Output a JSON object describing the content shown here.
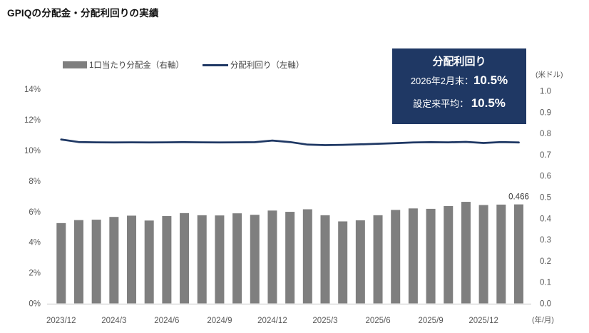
{
  "page_title": "GPIQの分配金・分配利回りの実績",
  "legend": {
    "bar_label": "1口当たり分配金（右軸）",
    "line_label": "分配利回り（左軸）"
  },
  "info_box": {
    "title": "分配利回り",
    "rows": [
      {
        "label": "2026年2月末：",
        "value": "10.5%"
      },
      {
        "label": "設定来平均： ",
        "value": "10.5%"
      }
    ]
  },
  "colors": {
    "navy": "#1f3864",
    "bar_gray": "#7f7f7f",
    "axis_text": "#595959",
    "axis_line": "#d9d9d9"
  },
  "chart_data": {
    "type": "bar",
    "title": "GPIQの分配金・分配利回りの実績",
    "x": [
      "2023/12",
      "2024/1",
      "2024/2",
      "2024/3",
      "2024/4",
      "2024/5",
      "2024/6",
      "2024/7",
      "2024/8",
      "2024/9",
      "2024/10",
      "2024/11",
      "2024/12",
      "2025/1",
      "2025/2",
      "2025/3",
      "2025/4",
      "2025/5",
      "2025/6",
      "2025/7",
      "2025/8",
      "2025/9",
      "2025/10",
      "2025/11",
      "2025/12",
      "2026/1",
      "2026/2"
    ],
    "x_tick_labels": [
      "2023/12",
      "2024/3",
      "2024/6",
      "2024/9",
      "2024/12",
      "2025/3",
      "2025/6",
      "2025/9",
      "2025/12"
    ],
    "x_axis_label": "(年/月)",
    "series": [
      {
        "name": "1口当たり分配金（右軸）",
        "type": "bar",
        "axis": "right",
        "unit": "米ドル",
        "values": [
          0.378,
          0.392,
          0.394,
          0.407,
          0.413,
          0.39,
          0.411,
          0.425,
          0.415,
          0.414,
          0.424,
          0.417,
          0.437,
          0.431,
          0.443,
          0.415,
          0.386,
          0.391,
          0.415,
          0.44,
          0.447,
          0.445,
          0.458,
          0.478,
          0.463,
          0.465,
          0.466
        ]
      },
      {
        "name": "分配利回り（左軸）",
        "type": "line",
        "axis": "left",
        "unit": "%",
        "values": [
          10.72,
          10.55,
          10.53,
          10.52,
          10.53,
          10.52,
          10.53,
          10.54,
          10.53,
          10.52,
          10.53,
          10.54,
          10.65,
          10.55,
          10.38,
          10.35,
          10.37,
          10.4,
          10.44,
          10.48,
          10.52,
          10.54,
          10.53,
          10.56,
          10.49,
          10.55,
          10.52
        ]
      }
    ],
    "left_axis": {
      "min": 0,
      "max": 14,
      "step": 2,
      "ticks": [
        "0%",
        "2%",
        "4%",
        "6%",
        "8%",
        "10%",
        "12%",
        "14%"
      ]
    },
    "right_axis": {
      "min": 0.0,
      "max": 1.0,
      "step": 0.1,
      "label": "(米ドル)",
      "ticks": [
        "0.0",
        "0.1",
        "0.2",
        "0.3",
        "0.4",
        "0.5",
        "0.6",
        "0.7",
        "0.8",
        "0.9",
        "1.0"
      ]
    },
    "annotations": [
      {
        "x": "2026/2",
        "series": "1口当たり分配金（右軸）",
        "text": "0.466"
      }
    ],
    "legend_position": "top",
    "grid": false
  }
}
